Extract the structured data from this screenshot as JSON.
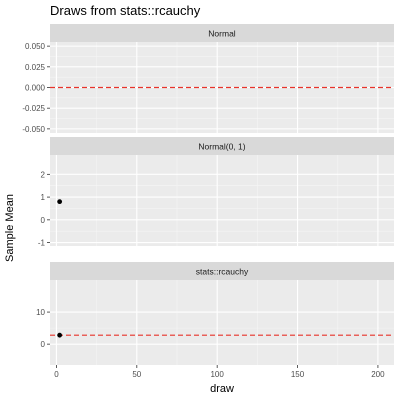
{
  "chart_data": {
    "type": "scatter",
    "title": "Draws from stats::rcauchy",
    "xlabel": "draw",
    "ylabel": "Sample Mean",
    "x_ticks": [
      0,
      50,
      100,
      150,
      200
    ],
    "xlim": [
      -4,
      210
    ],
    "grid": true,
    "panels": [
      {
        "strip": "Normal",
        "ylim": [
          -0.055,
          0.055
        ],
        "y_ticks": [
          -0.05,
          -0.025,
          0,
          0.025,
          0.05
        ],
        "y_tick_labels": [
          "-0.050",
          "-0.025",
          "0.000",
          "0.025",
          "0.050"
        ],
        "points": [],
        "hline": 0
      },
      {
        "strip": "Normal(0, 1)",
        "ylim": [
          -1.15,
          2.85
        ],
        "y_ticks": [
          -1,
          0,
          1,
          2
        ],
        "y_tick_labels": [
          "-1",
          "0",
          "1",
          "2"
        ],
        "points": [
          {
            "x": 2,
            "y": 0.8
          }
        ],
        "hline": null
      },
      {
        "strip": "stats::rcauchy",
        "ylim": [
          -6.5,
          20
        ],
        "y_ticks": [
          0,
          10
        ],
        "y_tick_labels": [
          "0",
          "10"
        ],
        "points": [
          {
            "x": 2,
            "y": 2.8
          }
        ],
        "hline": 2.8
      }
    ],
    "colors": {
      "panel_bg": "#ebebeb",
      "strip_bg": "#d9d9d9",
      "grid_major": "#ffffff",
      "hline": "#e8332b",
      "point": "#000000",
      "axis_text": "#4d4d4d",
      "text": "#1a1a1a"
    }
  }
}
